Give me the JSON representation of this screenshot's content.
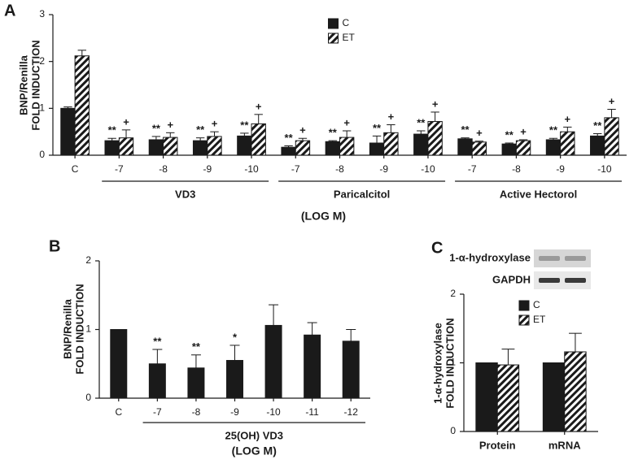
{
  "chart_data": [
    {
      "type": "bar",
      "panel_label": "A",
      "y_label": [
        "BNP/Renilla",
        "FOLD INDUCTION"
      ],
      "categories": [
        "C",
        "-7",
        "-8",
        "-9",
        "-10",
        "-7",
        "-8",
        "-9",
        "-10",
        "-7",
        "-8",
        "-9",
        "-10"
      ],
      "category_groups": [
        null,
        "VD3",
        "VD3",
        "VD3",
        "VD3",
        "Paricalcitol",
        "Paricalcitol",
        "Paricalcitol",
        "Paricalcitol",
        "Active Hectorol",
        "Active Hectorol",
        "Active Hectorol",
        "Active Hectorol"
      ],
      "x_label": "(LOG M)",
      "series": [
        {
          "name": "C",
          "color": "#1a1a1a",
          "values": [
            1.0,
            0.31,
            0.33,
            0.31,
            0.41,
            0.17,
            0.29,
            0.26,
            0.45,
            0.35,
            0.24,
            0.33,
            0.41
          ],
          "errors": [
            0.03,
            0.05,
            0.07,
            0.06,
            0.06,
            0.03,
            0.02,
            0.15,
            0.07,
            0.02,
            0.02,
            0.03,
            0.05
          ],
          "significance": [
            null,
            "**",
            "**",
            "**",
            "**",
            "**",
            "**",
            "**",
            "**",
            "**",
            "**",
            "**",
            "**"
          ]
        },
        {
          "name": "ET",
          "color": "#1a1a1a",
          "pattern": "hatch",
          "values": [
            2.12,
            0.37,
            0.38,
            0.4,
            0.67,
            0.31,
            0.38,
            0.48,
            0.72,
            0.28,
            0.31,
            0.5,
            0.8
          ],
          "errors": [
            0.12,
            0.17,
            0.1,
            0.1,
            0.2,
            0.05,
            0.14,
            0.17,
            0.2,
            0.02,
            0.02,
            0.1,
            0.18
          ],
          "significance": [
            null,
            "+",
            "+",
            "+",
            "+",
            "+",
            "+",
            "+",
            "+",
            "+",
            "+",
            "+",
            "+"
          ]
        }
      ],
      "ylim": [
        0,
        3
      ],
      "yticks": [
        0,
        1,
        2,
        3
      ],
      "legend": "upper center"
    },
    {
      "type": "bar",
      "panel_label": "B",
      "y_label": [
        "BNP/Renilla",
        "FOLD INDUCTION"
      ],
      "categories": [
        "C",
        "-7",
        "-8",
        "-9",
        "-10",
        "-11",
        "-12"
      ],
      "category_groups": [
        null,
        "25(OH) VD3",
        "25(OH) VD3",
        "25(OH) VD3",
        "25(OH) VD3",
        "25(OH) VD3",
        "25(OH) VD3"
      ],
      "x_label": "(LOG M)",
      "color": "#1a1a1a",
      "values": [
        1.0,
        0.5,
        0.44,
        0.55,
        1.06,
        0.92,
        0.83
      ],
      "errors": [
        0,
        0.21,
        0.19,
        0.22,
        0.3,
        0.18,
        0.17
      ],
      "significance": [
        null,
        "**",
        "**",
        "*",
        null,
        null,
        null
      ],
      "ylim": [
        0,
        2
      ],
      "yticks": [
        0,
        1,
        2
      ]
    },
    {
      "type": "bar",
      "panel_label": "C",
      "y_label": [
        "1-α-hydroxylase",
        "FOLD INDUCTION"
      ],
      "blot_labels": [
        "1-α-hydroxylase",
        "GAPDH"
      ],
      "categories": [
        "Protein",
        "mRNA"
      ],
      "series": [
        {
          "name": "C",
          "color": "#1a1a1a",
          "values": [
            1.0,
            1.0
          ],
          "errors": [
            0,
            0
          ]
        },
        {
          "name": "ET",
          "color": "#1a1a1a",
          "pattern": "hatch",
          "values": [
            0.97,
            1.16
          ],
          "errors": [
            0.23,
            0.27
          ]
        }
      ],
      "ylim": [
        0,
        2
      ],
      "yticks": [
        0,
        1,
        2
      ],
      "legend": "upper left"
    }
  ]
}
